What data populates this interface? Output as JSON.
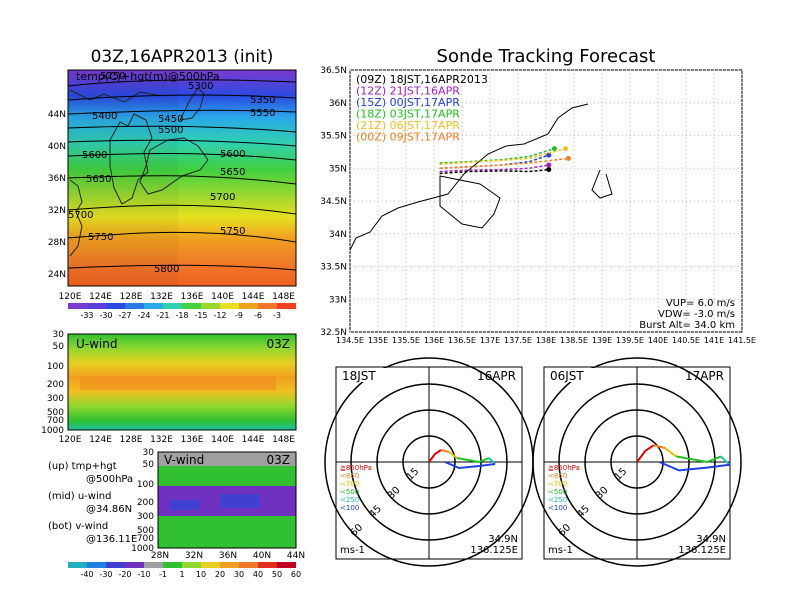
{
  "map_panel": {
    "title": "03Z,16APR2013 (init)",
    "label": "temp(C)+hgt(m)@500hPa",
    "lat_labels": [
      "24N",
      "28N",
      "32N",
      "36N",
      "40N",
      "44N"
    ],
    "lon_labels": [
      "120E",
      "124E",
      "128E",
      "132E",
      "136E",
      "140E",
      "144E",
      "148E"
    ],
    "contour_labels": [
      "5250",
      "5300",
      "5350",
      "5400",
      "5450",
      "5500",
      "5550",
      "5600",
      "5600",
      "5650",
      "5650",
      "5700",
      "5700",
      "5750",
      "5750",
      "5800"
    ],
    "colorbar_labels": [
      "-33",
      "-30",
      "-27",
      "-24",
      "-21",
      "-18",
      "-15",
      "-12",
      "-9",
      "-6",
      "-3"
    ]
  },
  "uwind_panel": {
    "label": "U-wind",
    "time": "03Z",
    "y_labels": [
      "30",
      "50",
      "100",
      "200",
      "300",
      "500",
      "700",
      "1000"
    ],
    "lon_labels": [
      "120E",
      "124E",
      "128E",
      "132E",
      "136E",
      "140E",
      "144E",
      "148E"
    ]
  },
  "vwind_panel": {
    "label": "V-wind",
    "time": "03Z",
    "y_labels": [
      "30",
      "50",
      "100",
      "200",
      "300",
      "500",
      "700",
      "1000"
    ],
    "lat_labels": [
      "28N",
      "32N",
      "36N",
      "40N",
      "44N"
    ],
    "colorbar_labels": [
      "-40",
      "-30",
      "-20",
      "-10",
      "-1",
      "1",
      "10",
      "20",
      "30",
      "40",
      "50",
      "60"
    ]
  },
  "legend_notes": [
    {
      "a": "(up) tmp+hgt",
      "b": "@500hPa"
    },
    {
      "a": "(mid) u-wind",
      "b": "@34.86N"
    },
    {
      "a": "(bot) v-wind",
      "b": "@136.11E"
    }
  ],
  "track_panel": {
    "title": "Sonde Tracking Forecast",
    "launches": [
      {
        "text": "(09Z)  18JST,16APR2013",
        "color": "#000000"
      },
      {
        "text": "(12Z)  21JST,16APR",
        "color": "#a020c0"
      },
      {
        "text": "(15Z)  00JST,17APR",
        "color": "#2040e0"
      },
      {
        "text": "(18Z)  03JST,17APR",
        "color": "#20c020"
      },
      {
        "text": "(21Z)  06JST,17APR",
        "color": "#f0c020"
      },
      {
        "text": "(00Z)  09JST,17APR",
        "color": "#f08020"
      }
    ],
    "lat_labels": [
      "32.5N",
      "33N",
      "33.5N",
      "34N",
      "34.5N",
      "35N",
      "35.5N",
      "36N",
      "36.5N"
    ],
    "lon_labels": [
      "134.5E",
      "135E",
      "135.5E",
      "136E",
      "136.5E",
      "137E",
      "137.5E",
      "138E",
      "138.5E",
      "139E",
      "139.5E",
      "140E",
      "140.5E",
      "141E",
      "141.5E"
    ],
    "params": [
      "VUP=  6.0  m/s",
      "VDW= -3.0  m/s",
      "Burst Alt=  34.0  km"
    ]
  },
  "polar_panels": [
    {
      "time": "18JST",
      "date": "16APR",
      "ring_labels": [
        "15",
        "30",
        "45",
        "60"
      ],
      "unit": "ms-1",
      "lat": "34.9N",
      "lon": "136.125E"
    },
    {
      "time": "06JST",
      "date": "17APR",
      "ring_labels": [
        "15",
        "30",
        "45",
        "60"
      ],
      "unit": "ms-1",
      "lat": "34.9N",
      "lon": "136.125E"
    }
  ],
  "hodograph_legend": [
    {
      "text": "≧850hPa",
      "color": "#e00000"
    },
    {
      "text": "<850",
      "color": "#f08020"
    },
    {
      "text": "<700",
      "color": "#e0c000"
    },
    {
      "text": "<500",
      "color": "#20c020"
    },
    {
      "text": "<250",
      "color": "#20c0c0"
    },
    {
      "text": "<100",
      "color": "#2040e0"
    }
  ],
  "chart_data": [
    {
      "type": "heatmap",
      "title": "03Z,16APR2013 (init)",
      "variable": "temp(C)+hgt(m)@500hPa",
      "x_range": [
        "120E",
        "150E"
      ],
      "y_range": [
        "22N",
        "47N"
      ],
      "color_levels": [
        -33,
        -30,
        -27,
        -24,
        -21,
        -18,
        -15,
        -12,
        -9,
        -6,
        -3
      ],
      "contours": [
        5250,
        5300,
        5350,
        5400,
        5450,
        5500,
        5550,
        5600,
        5650,
        5700,
        5750,
        5800
      ]
    },
    {
      "type": "heatmap",
      "title": "U-wind",
      "x_range": [
        "120E",
        "150E"
      ],
      "y_levels_hPa": [
        30,
        50,
        100,
        200,
        300,
        500,
        700,
        1000
      ]
    },
    {
      "type": "heatmap",
      "title": "V-wind",
      "x_range": [
        "28N",
        "44N"
      ],
      "y_levels_hPa": [
        30,
        50,
        100,
        200,
        300,
        500,
        700,
        1000
      ],
      "color_levels": [
        -40,
        -30,
        -20,
        -10,
        -1,
        1,
        10,
        20,
        30,
        40,
        50,
        60
      ]
    },
    {
      "type": "line",
      "title": "Sonde Tracking Forecast",
      "x_range": [
        134.5,
        141.5
      ],
      "y_range": [
        32.5,
        36.5
      ],
      "series": [
        {
          "name": "(09Z)",
          "color": "#000000",
          "x": [
            136.1,
            136.6,
            137.2,
            137.7,
            138.05
          ],
          "y": [
            34.92,
            34.95,
            34.96,
            34.95,
            34.98
          ]
        },
        {
          "name": "(12Z)",
          "color": "#a020c0",
          "x": [
            136.1,
            136.6,
            137.2,
            137.7,
            138.05
          ],
          "y": [
            34.95,
            34.97,
            34.98,
            35.0,
            35.05
          ]
        },
        {
          "name": "(15Z)",
          "color": "#2040e0",
          "x": [
            136.1,
            136.6,
            137.2,
            137.7,
            138.05
          ],
          "y": [
            35.0,
            35.02,
            35.05,
            35.1,
            35.2
          ]
        },
        {
          "name": "(18Z)",
          "color": "#20c020",
          "x": [
            136.1,
            136.6,
            137.2,
            137.7,
            138.15
          ],
          "y": [
            35.08,
            35.1,
            35.13,
            35.18,
            35.3
          ]
        },
        {
          "name": "(21Z)",
          "color": "#f0c020",
          "x": [
            136.1,
            136.6,
            137.2,
            137.7,
            138.35
          ],
          "y": [
            35.06,
            35.09,
            35.12,
            35.15,
            35.3
          ]
        },
        {
          "name": "(00Z)",
          "color": "#f08020",
          "x": [
            136.1,
            136.6,
            137.2,
            137.7,
            138.4
          ],
          "y": [
            35.0,
            35.02,
            35.05,
            35.08,
            35.15
          ]
        }
      ]
    },
    {
      "type": "scatter",
      "title": "18JST 16APR",
      "rings": [
        15,
        30,
        45,
        60
      ]
    },
    {
      "type": "scatter",
      "title": "06JST 17APR",
      "rings": [
        15,
        30,
        45,
        60
      ]
    }
  ]
}
